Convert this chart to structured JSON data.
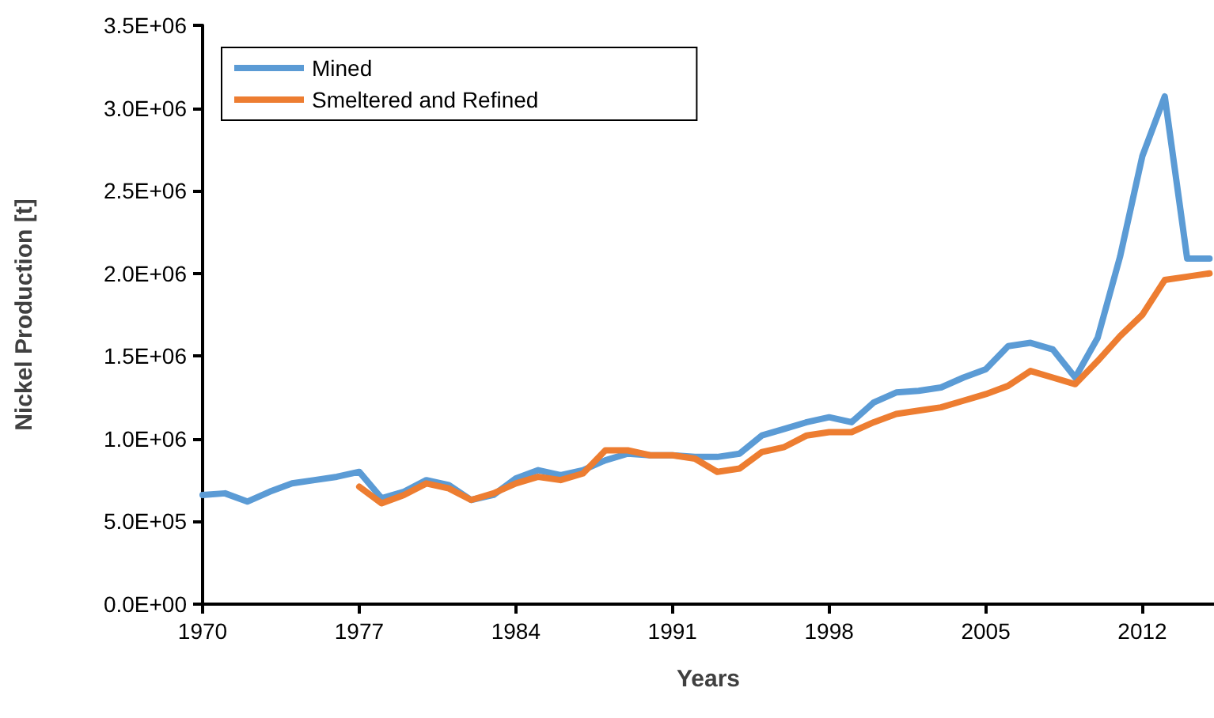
{
  "chart_data": {
    "type": "line",
    "xlabel": "Years",
    "ylabel": "Nickel Production [t]",
    "x": [
      1970,
      1971,
      1972,
      1973,
      1974,
      1975,
      1976,
      1977,
      1978,
      1979,
      1980,
      1981,
      1982,
      1983,
      1984,
      1985,
      1986,
      1987,
      1988,
      1989,
      1990,
      1991,
      1992,
      1993,
      1994,
      1995,
      1996,
      1997,
      1998,
      1999,
      2000,
      2001,
      2002,
      2003,
      2004,
      2005,
      2006,
      2007,
      2008,
      2009,
      2010,
      2011,
      2012,
      2013,
      2014,
      2015
    ],
    "series": [
      {
        "name": "Mined",
        "color": "#5b9bd5",
        "values": [
          660000,
          670000,
          620000,
          680000,
          730000,
          750000,
          770000,
          800000,
          640000,
          680000,
          750000,
          720000,
          630000,
          660000,
          760000,
          810000,
          780000,
          810000,
          870000,
          910000,
          900000,
          900000,
          890000,
          890000,
          910000,
          1020000,
          1060000,
          1100000,
          1130000,
          1100000,
          1220000,
          1280000,
          1290000,
          1310000,
          1370000,
          1420000,
          1560000,
          1580000,
          1540000,
          1370000,
          1610000,
          2100000,
          2710000,
          3070000,
          2090000,
          2090000
        ]
      },
      {
        "name": "Smeltered and Refined",
        "color": "#ed7d31",
        "values": [
          null,
          null,
          null,
          null,
          null,
          null,
          null,
          710000,
          610000,
          660000,
          730000,
          700000,
          630000,
          670000,
          730000,
          770000,
          750000,
          790000,
          930000,
          930000,
          900000,
          900000,
          880000,
          800000,
          820000,
          920000,
          950000,
          1020000,
          1040000,
          1040000,
          1100000,
          1150000,
          1170000,
          1190000,
          1230000,
          1270000,
          1320000,
          1410000,
          1370000,
          1330000,
          1470000,
          1620000,
          1750000,
          1960000,
          1980000,
          2000000
        ]
      }
    ],
    "xlim": [
      1970,
      2015.2
    ],
    "xticks": [
      1970,
      1977,
      1984,
      1991,
      1998,
      2005,
      2012
    ],
    "ylim": [
      0,
      3500000
    ],
    "yticks": [
      {
        "value": 0,
        "label": "0.0E+00"
      },
      {
        "value": 500000,
        "label": "5.0E+05"
      },
      {
        "value": 1000000,
        "label": "1.0E+06"
      },
      {
        "value": 1500000,
        "label": "1.5E+06"
      },
      {
        "value": 2000000,
        "label": "2.0E+06"
      },
      {
        "value": 2500000,
        "label": "2.5E+06"
      },
      {
        "value": 3000000,
        "label": "3.0E+06"
      },
      {
        "value": 3500000,
        "label": "3.5E+06"
      }
    ],
    "grid": false,
    "legend": "top left",
    "marker": "none",
    "line_style": "solid"
  }
}
